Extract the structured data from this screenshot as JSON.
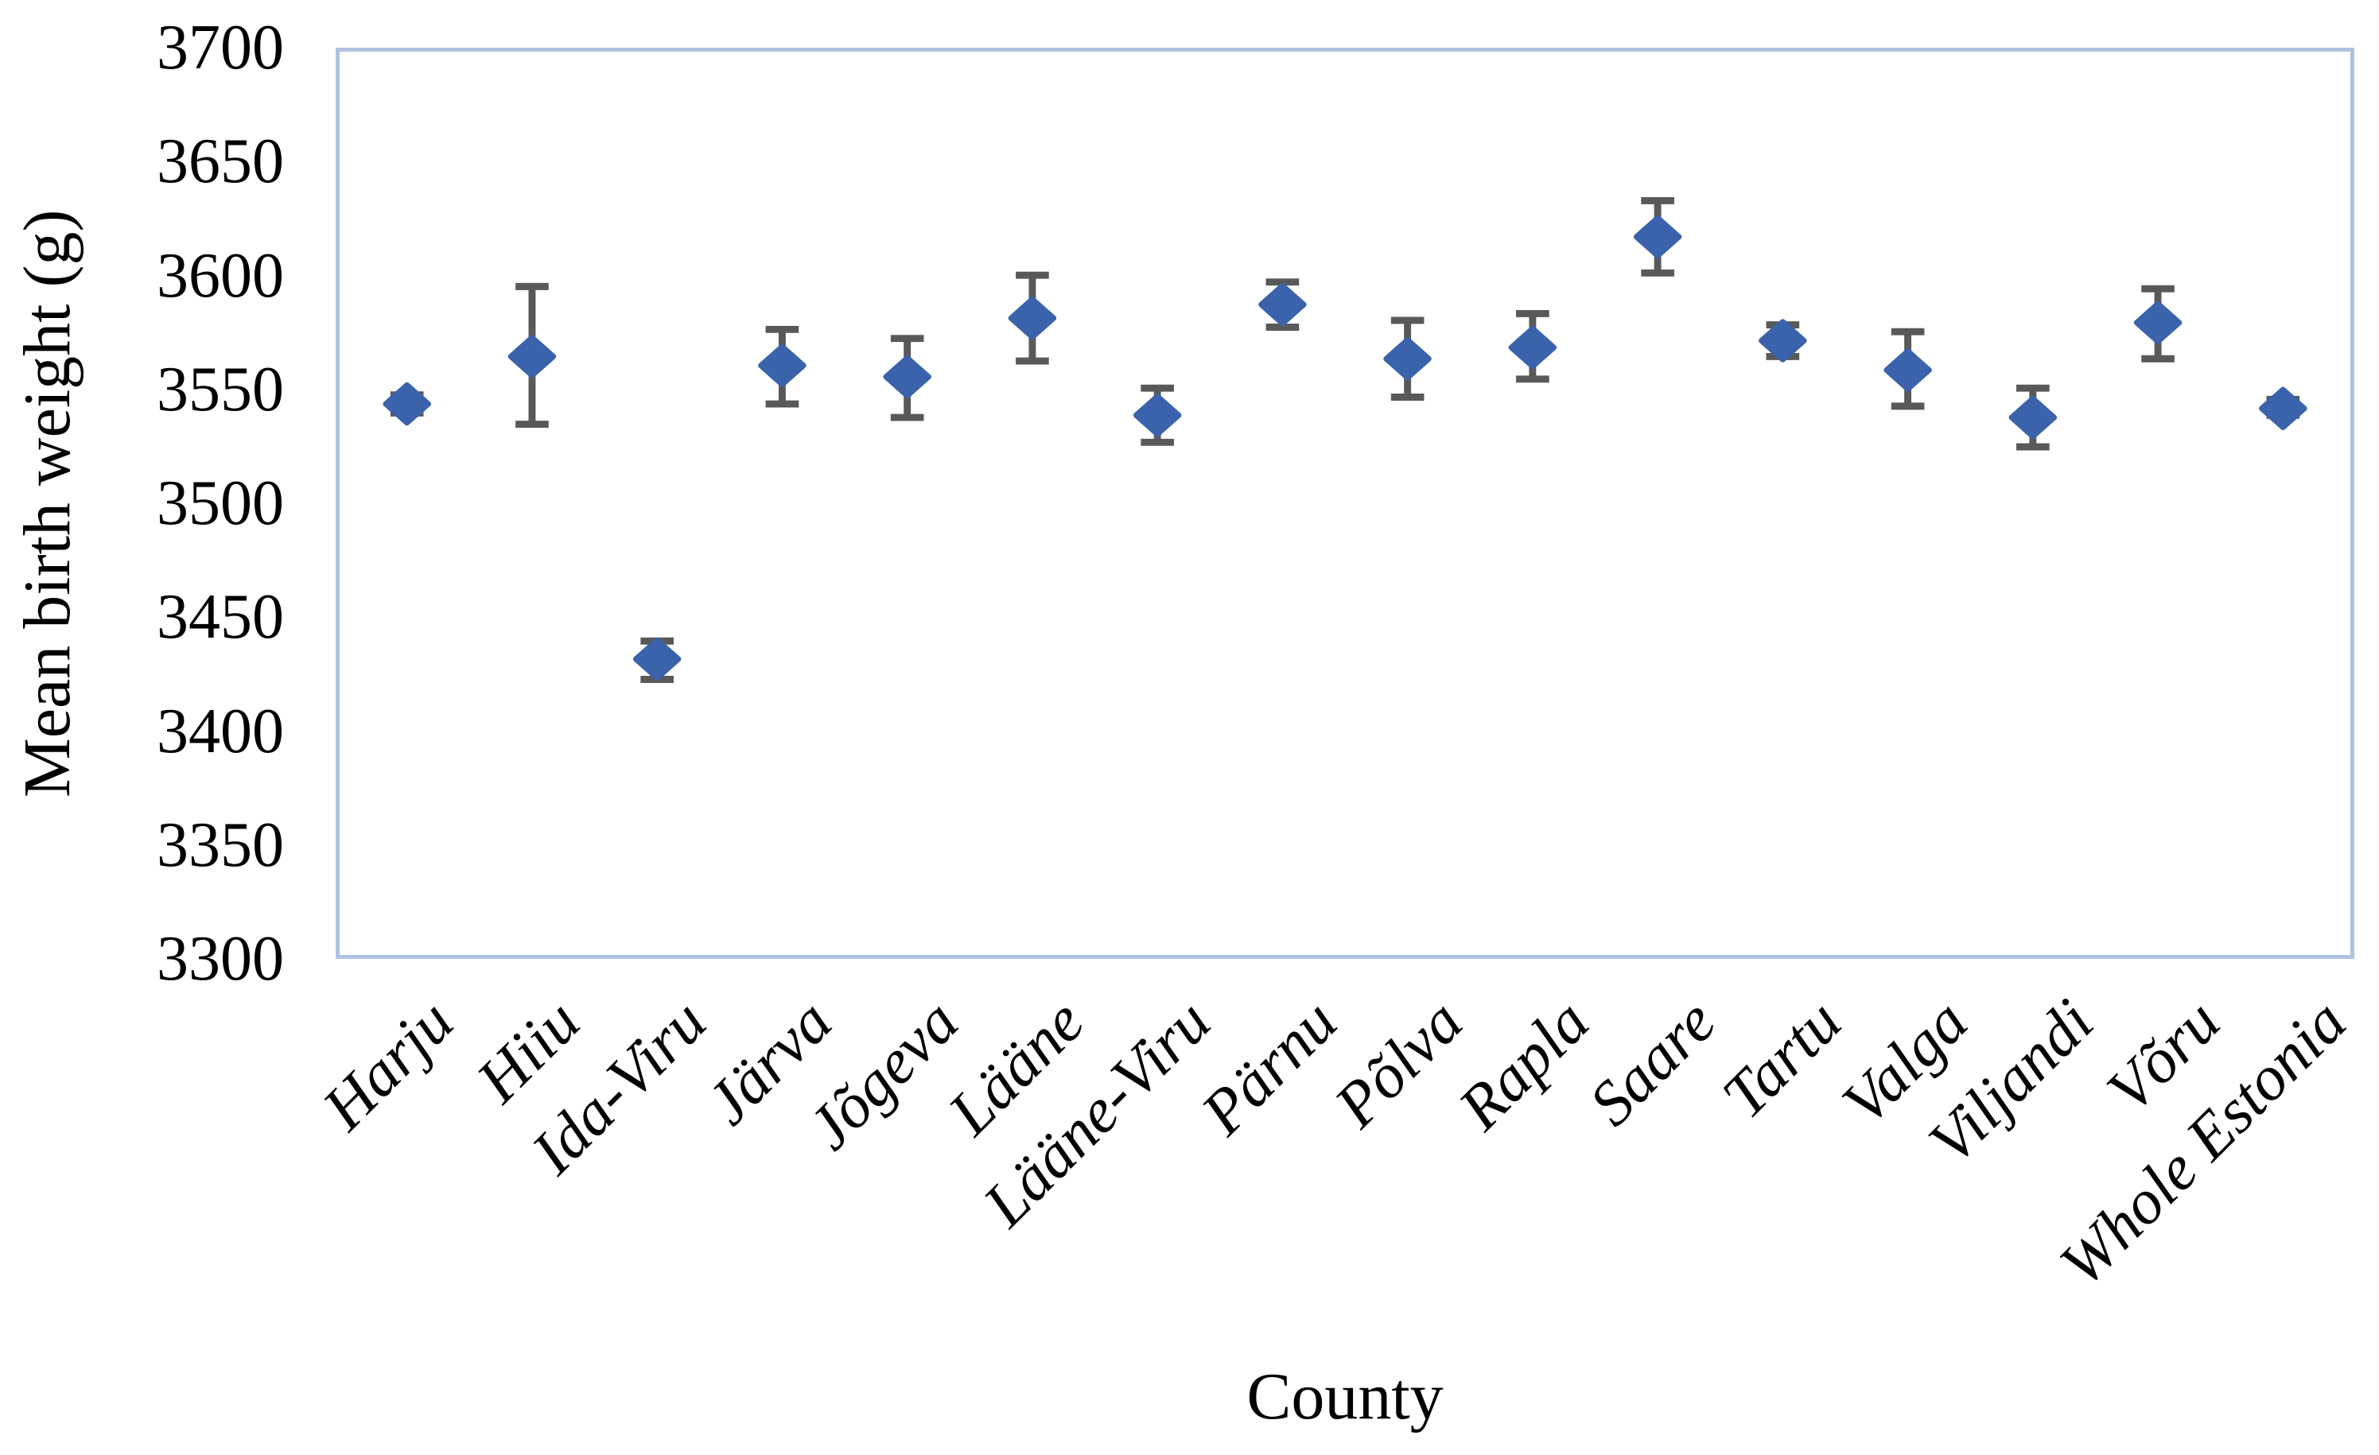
{
  "chart_data": {
    "type": "scatter",
    "title": "",
    "xlabel": "County",
    "ylabel": "Mean birth weight (g)",
    "ylim": [
      3300,
      3700
    ],
    "y_tick_step": 50,
    "y_ticks": [
      3700,
      3650,
      3600,
      3550,
      3500,
      3450,
      3400,
      3350,
      3300
    ],
    "grid": false,
    "legend": false,
    "categories": [
      "Harju",
      "Hiiu",
      "Ida-Viru",
      "Järva",
      "Jõgeva",
      "Lääne",
      "Lääne-Viru",
      "Pärnu",
      "Põlva",
      "Rapla",
      "Saare",
      "Tartu",
      "Valga",
      "Viljandi",
      "Võru",
      "Whole Estonia"
    ],
    "series": [
      {
        "name": "Mean birth weight (g)",
        "values": [
          3544,
          3565,
          3431,
          3561,
          3556,
          3582,
          3539,
          3588,
          3564,
          3569,
          3618,
          3572,
          3559,
          3538,
          3580,
          3542
        ],
        "ci_low": [
          3540,
          3535,
          3422,
          3544,
          3538,
          3563,
          3527,
          3578,
          3547,
          3555,
          3602,
          3565,
          3543,
          3525,
          3564,
          3539
        ],
        "ci_high": [
          3548,
          3596,
          3439,
          3577,
          3573,
          3601,
          3551,
          3598,
          3581,
          3584,
          3634,
          3579,
          3576,
          3551,
          3595,
          3546
        ]
      }
    ],
    "marker": {
      "shape": "diamond",
      "color": "#3B63AB"
    },
    "error_bar_color": "#595959",
    "plot_border_color": "#AEC3E0"
  }
}
